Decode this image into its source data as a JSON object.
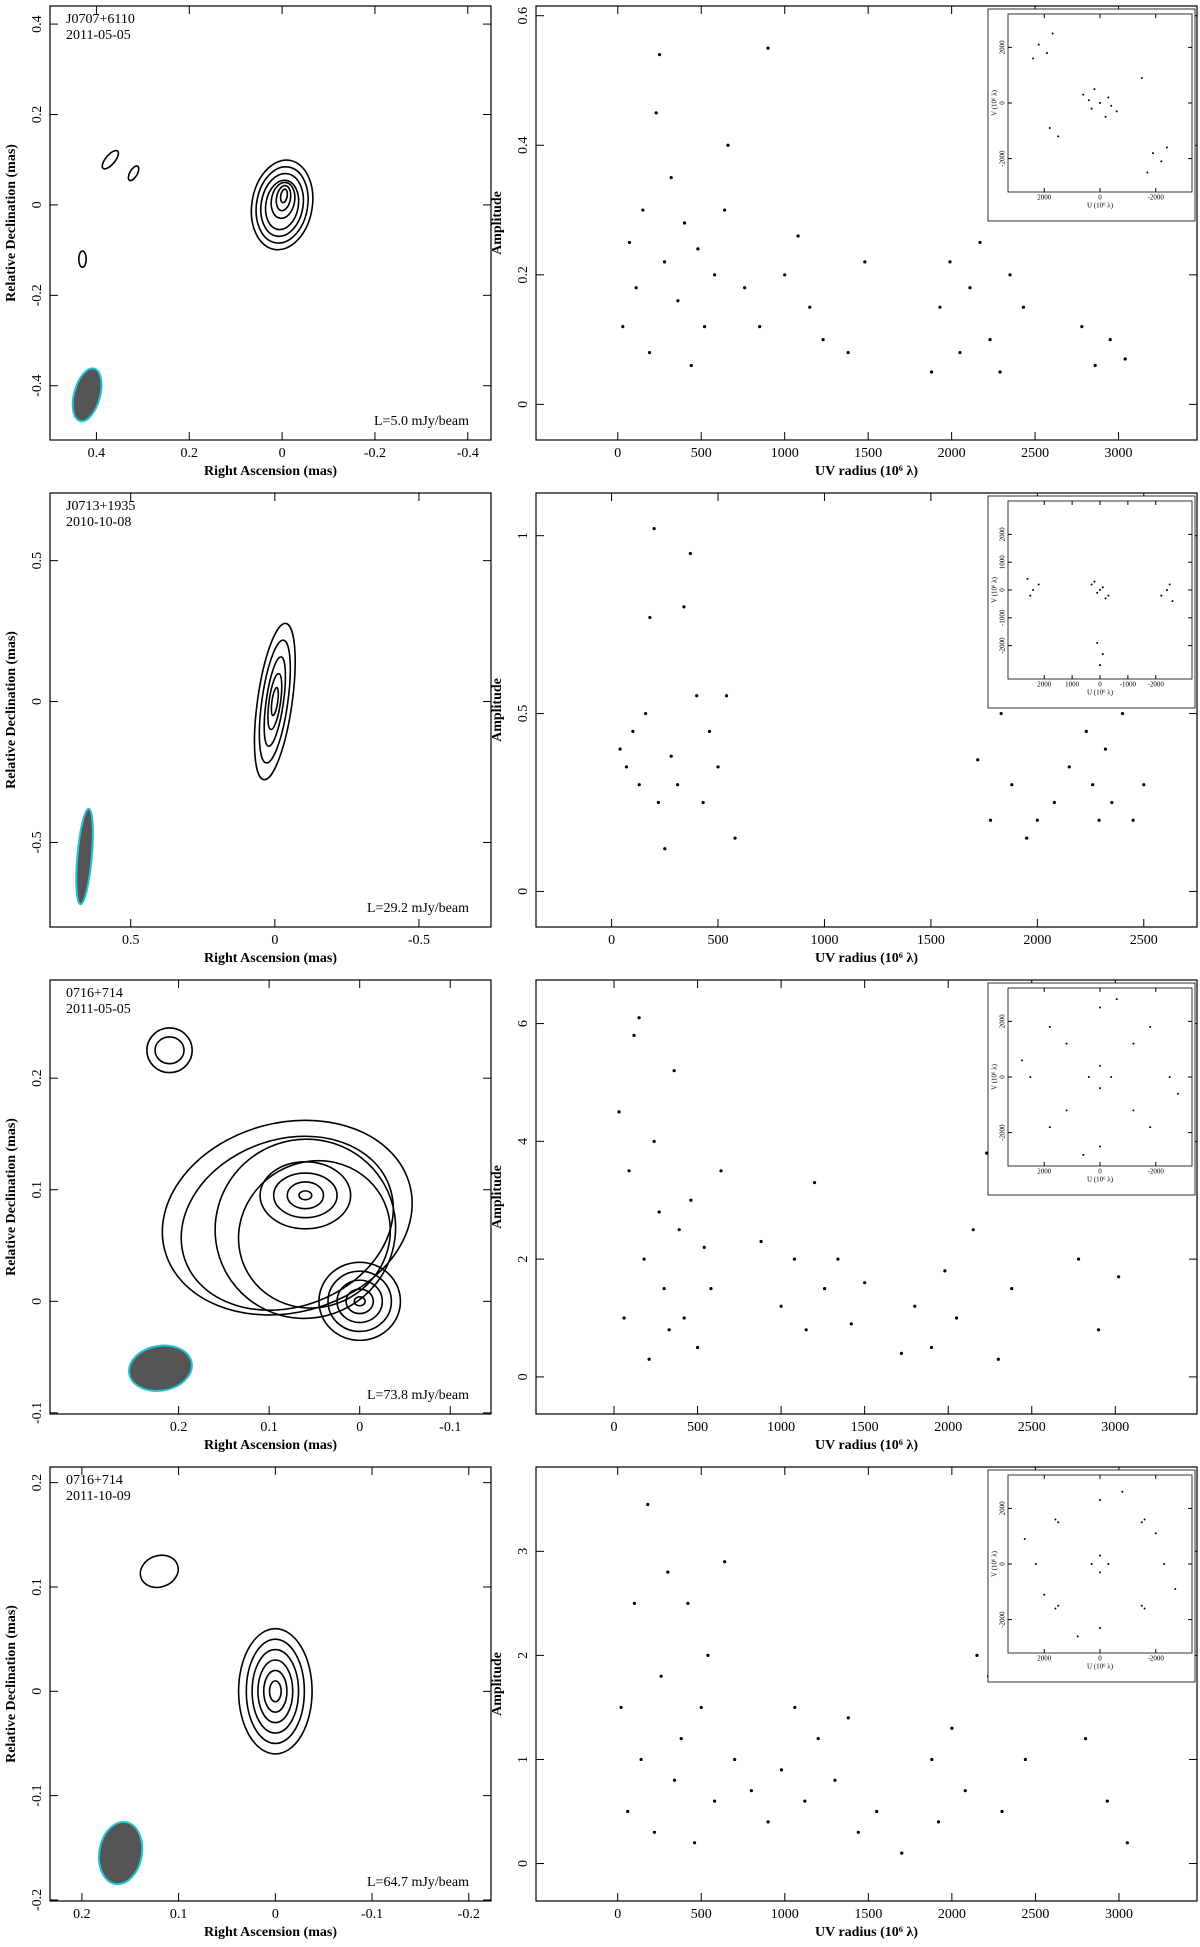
{
  "chart_data": [
    {
      "type": "contour",
      "source": "J0707+6110",
      "date": "2011-05-05",
      "annotation": "L=5.0 mJy/beam",
      "xlabel": "Right Ascension  (mas)",
      "ylabel": "Relative Declination  (mas)",
      "xlim": [
        0.5,
        -0.45
      ],
      "ylim": [
        -0.52,
        0.44
      ],
      "xticks": [
        0.4,
        0.2,
        0,
        -0.2,
        -0.4
      ],
      "yticks": [
        -0.4,
        -0.2,
        0,
        0.2,
        0.4
      ],
      "contour_color": "#000000",
      "beam_color": "#555555",
      "beam_edge": "#22c4d4",
      "contours": [
        {
          "x": 0,
          "y": 0,
          "rx": 0.065,
          "ry": 0.1,
          "angle": 10
        },
        {
          "x": 0,
          "y": 0,
          "rx": 0.055,
          "ry": 0.085,
          "angle": 10
        },
        {
          "x": 0,
          "y": 0,
          "rx": 0.045,
          "ry": 0.07,
          "angle": 10
        },
        {
          "x": 0,
          "y": 0,
          "rx": 0.035,
          "ry": 0.055,
          "angle": 10
        },
        {
          "x": -0.002,
          "y": 0.01,
          "rx": 0.025,
          "ry": 0.04,
          "angle": 10
        },
        {
          "x": -0.003,
          "y": 0.015,
          "rx": 0.015,
          "ry": 0.028,
          "angle": 10
        },
        {
          "x": -0.004,
          "y": 0.02,
          "rx": 0.007,
          "ry": 0.015,
          "angle": 10
        },
        {
          "x": 0.37,
          "y": 0.1,
          "rx": 0.01,
          "ry": 0.025,
          "angle": 40
        },
        {
          "x": 0.32,
          "y": 0.07,
          "rx": 0.008,
          "ry": 0.018,
          "angle": 30
        },
        {
          "x": 0.43,
          "y": -0.12,
          "rx": 0.008,
          "ry": 0.018,
          "angle": 0
        }
      ],
      "beam": {
        "x": 0.42,
        "y": -0.42,
        "rx": 0.028,
        "ry": 0.06,
        "angle": 15
      }
    },
    {
      "type": "scatter",
      "xlabel": "UV radius  (10⁶ λ)",
      "ylabel": "Amplitude",
      "color": "#000000",
      "xlim": [
        -490,
        3470
      ],
      "ylim": [
        -0.055,
        0.615
      ],
      "xticks": [
        0,
        500,
        1000,
        1500,
        2000,
        2500,
        3000
      ],
      "yticks": [
        0,
        0.2,
        0.4,
        0.6
      ],
      "x": [
        30,
        70,
        110,
        150,
        190,
        230,
        250,
        280,
        320,
        360,
        400,
        440,
        480,
        520,
        580,
        640,
        660,
        760,
        850,
        900,
        1000,
        1080,
        1150,
        1230,
        1380,
        1480,
        1880,
        1930,
        1990,
        2050,
        2110,
        2170,
        2230,
        2290,
        2350,
        2430,
        2780,
        2860,
        2950,
        3040
      ],
      "values": [
        0.12,
        0.25,
        0.18,
        0.3,
        0.08,
        0.45,
        0.54,
        0.22,
        0.35,
        0.16,
        0.28,
        0.06,
        0.24,
        0.12,
        0.2,
        0.3,
        0.4,
        0.18,
        0.12,
        0.55,
        0.2,
        0.26,
        0.15,
        0.1,
        0.08,
        0.22,
        0.05,
        0.15,
        0.22,
        0.08,
        0.18,
        0.25,
        0.1,
        0.05,
        0.2,
        0.15,
        0.12,
        0.06,
        0.1,
        0.07
      ],
      "inset": {
        "xlabel": "U (10⁶ λ)",
        "ylabel": "V (10⁶ λ)",
        "xlim": [
          3300,
          -3300
        ],
        "ylim": [
          -3200,
          3200
        ],
        "xticks": [
          2000,
          0,
          -2000
        ],
        "yticks": [
          -2000,
          0,
          2000
        ],
        "x": [
          2200,
          1900,
          1700,
          2400,
          600,
          300,
          -300,
          -600,
          0,
          200,
          -200,
          400,
          -400,
          1800,
          1500,
          -2200,
          -1900,
          -1700,
          -2400,
          -1500
        ],
        "values": [
          2100,
          1800,
          2500,
          1600,
          300,
          -200,
          200,
          -300,
          0,
          500,
          -500,
          100,
          -100,
          -900,
          -1200,
          -2100,
          -1800,
          -2500,
          -1600,
          900
        ]
      }
    },
    {
      "type": "contour",
      "source": "J0713+1935",
      "date": "2010-10-08",
      "annotation": "L=29.2 mJy/beam",
      "xlabel": "Right Ascension  (mas)",
      "ylabel": "Relative Declination  (mas)",
      "xlim": [
        0.78,
        -0.75
      ],
      "ylim": [
        -0.8,
        0.74
      ],
      "xticks": [
        0.5,
        0,
        -0.5
      ],
      "yticks": [
        -0.5,
        0,
        0.5
      ],
      "contour_color": "#000000",
      "beam_color": "#555555",
      "beam_edge": "#22c4d4",
      "contours": [
        {
          "x": 0,
          "y": 0,
          "rx": 0.06,
          "ry": 0.28,
          "angle": 8
        },
        {
          "x": 0,
          "y": 0,
          "rx": 0.045,
          "ry": 0.22,
          "angle": 8
        },
        {
          "x": 0,
          "y": 0,
          "rx": 0.03,
          "ry": 0.16,
          "angle": 8
        },
        {
          "x": 0,
          "y": 0,
          "rx": 0.02,
          "ry": 0.1,
          "angle": 8
        },
        {
          "x": 0,
          "y": 0,
          "rx": 0.01,
          "ry": 0.05,
          "angle": 8
        }
      ],
      "beam": {
        "x": 0.66,
        "y": -0.55,
        "rx": 0.025,
        "ry": 0.17,
        "angle": 5
      }
    },
    {
      "type": "scatter",
      "xlabel": "UV radius  (10⁶ λ)",
      "ylabel": "Amplitude",
      "color": "#000000",
      "xlim": [
        -355,
        2750
      ],
      "ylim": [
        -0.1,
        1.12
      ],
      "xticks": [
        0,
        500,
        1000,
        1500,
        2000,
        2500
      ],
      "yticks": [
        0,
        0.5,
        1
      ],
      "x": [
        40,
        70,
        100,
        130,
        160,
        180,
        200,
        220,
        250,
        280,
        310,
        340,
        370,
        400,
        430,
        460,
        500,
        540,
        580,
        1720,
        1780,
        1830,
        1880,
        1950,
        2000,
        2080,
        2150,
        2200,
        2230,
        2260,
        2290,
        2320,
        2350,
        2400,
        2450,
        2500
      ],
      "values": [
        0.4,
        0.35,
        0.45,
        0.3,
        0.5,
        0.77,
        1.02,
        0.25,
        0.12,
        0.38,
        0.3,
        0.8,
        0.95,
        0.55,
        0.25,
        0.45,
        0.35,
        0.55,
        0.15,
        0.37,
        0.2,
        0.5,
        0.3,
        0.15,
        0.2,
        0.25,
        0.35,
        0.6,
        0.45,
        0.3,
        0.2,
        0.4,
        0.25,
        0.5,
        0.2,
        0.3
      ],
      "inset": {
        "xlabel": "U (10⁶ λ)",
        "ylabel": "V (10⁶ λ)",
        "xlim": [
          3300,
          -3300
        ],
        "ylim": [
          -3200,
          3200
        ],
        "xticks": [
          2000,
          1000,
          0,
          -1000,
          -2000
        ],
        "yticks": [
          -2000,
          -1000,
          0,
          1000,
          2000
        ],
        "x": [
          2600,
          2400,
          2200,
          2500,
          300,
          100,
          -100,
          -300,
          0,
          200,
          -200,
          -2600,
          -2400,
          -2200,
          -2500,
          100,
          -100,
          0
        ],
        "values": [
          400,
          0,
          200,
          -200,
          200,
          -100,
          100,
          -200,
          0,
          300,
          -300,
          -400,
          0,
          -200,
          200,
          -1900,
          -2300,
          -2700
        ]
      }
    },
    {
      "type": "contour",
      "source": "0716+714",
      "date": "2011-05-05",
      "annotation": "L=73.8 mJy/beam",
      "xlabel": "Right Ascension  (mas)",
      "ylabel": "Relative Declination  (mas)",
      "xlim": [
        0.342,
        -0.145
      ],
      "ylim": [
        -0.101,
        0.288
      ],
      "xticks": [
        0.2,
        0.1,
        0,
        -0.1
      ],
      "yticks": [
        -0.1,
        0,
        0.1,
        0.2
      ],
      "contour_color": "#000000",
      "beam_color": "#555555",
      "beam_edge": "#22c4d4",
      "contours": [
        {
          "x": 0,
          "y": 0,
          "rx": 0.045,
          "ry": 0.035,
          "angle": 0
        },
        {
          "x": 0,
          "y": 0,
          "rx": 0.035,
          "ry": 0.027,
          "angle": 0
        },
        {
          "x": 0,
          "y": 0,
          "rx": 0.025,
          "ry": 0.019,
          "angle": 0
        },
        {
          "x": 0,
          "y": 0,
          "rx": 0.015,
          "ry": 0.011,
          "angle": 0
        },
        {
          "x": 0,
          "y": 0,
          "rx": 0.006,
          "ry": 0.004,
          "angle": 0
        },
        {
          "x": 0.06,
          "y": 0.095,
          "rx": 0.05,
          "ry": 0.03,
          "angle": 0
        },
        {
          "x": 0.06,
          "y": 0.095,
          "rx": 0.035,
          "ry": 0.02,
          "angle": 0
        },
        {
          "x": 0.06,
          "y": 0.095,
          "rx": 0.02,
          "ry": 0.012,
          "angle": 0
        },
        {
          "x": 0.06,
          "y": 0.095,
          "rx": 0.007,
          "ry": 0.004,
          "angle": 0
        },
        {
          "x": 0.05,
          "y": 0.06,
          "rx": 0.085,
          "ry": 0.065,
          "angle": -30
        },
        {
          "x": 0.06,
          "y": 0.065,
          "rx": 0.1,
          "ry": 0.08,
          "angle": -30
        },
        {
          "x": 0.08,
          "y": 0.07,
          "rx": 0.12,
          "ry": 0.075,
          "angle": -20
        },
        {
          "x": 0.08,
          "y": 0.075,
          "rx": 0.14,
          "ry": 0.085,
          "angle": -15
        },
        {
          "x": 0.21,
          "y": 0.225,
          "rx": 0.025,
          "ry": 0.02,
          "angle": 0
        },
        {
          "x": 0.21,
          "y": 0.225,
          "rx": 0.016,
          "ry": 0.012,
          "angle": 0
        }
      ],
      "beam": {
        "x": 0.22,
        "y": -0.06,
        "rx": 0.035,
        "ry": 0.02,
        "angle": -10
      }
    },
    {
      "type": "scatter",
      "xlabel": "UV radius  (10⁶ λ)",
      "ylabel": "Amplitude",
      "color": "#000000",
      "xlim": [
        -467,
        3489
      ],
      "ylim": [
        -0.63,
        6.74
      ],
      "xticks": [
        0,
        500,
        1000,
        1500,
        2000,
        2500,
        3000
      ],
      "yticks": [
        0,
        2,
        4,
        6
      ],
      "x": [
        30,
        60,
        90,
        120,
        150,
        180,
        210,
        240,
        270,
        300,
        330,
        360,
        390,
        420,
        460,
        500,
        540,
        580,
        640,
        880,
        1000,
        1080,
        1150,
        1200,
        1260,
        1340,
        1420,
        1500,
        1720,
        1800,
        1900,
        1980,
        2050,
        2150,
        2230,
        2300,
        2380,
        2780,
        2900,
        3020
      ],
      "values": [
        4.5,
        1.0,
        3.5,
        5.8,
        6.1,
        2.0,
        0.3,
        4.0,
        2.8,
        1.5,
        0.8,
        5.2,
        2.5,
        1.0,
        3.0,
        0.5,
        2.2,
        1.5,
        3.5,
        2.3,
        1.2,
        2.0,
        0.8,
        3.3,
        1.5,
        2.0,
        0.9,
        1.6,
        0.4,
        1.2,
        0.5,
        1.8,
        1.0,
        2.5,
        3.8,
        0.3,
        1.5,
        2.0,
        0.8,
        1.7
      ],
      "inset": {
        "xlabel": "U (10⁶ λ)",
        "ylabel": "V (10⁶ λ)",
        "xlim": [
          3300,
          -3300
        ],
        "ylim": [
          -3200,
          3200
        ],
        "xticks": [
          2000,
          0,
          -2000
        ],
        "yticks": [
          -2000,
          0,
          2000
        ],
        "x": [
          2500,
          1800,
          0,
          -1800,
          -2500,
          -1800,
          0,
          1800,
          1200,
          -1200,
          -1200,
          1200,
          400,
          -400,
          0,
          0,
          2800,
          -2800,
          600,
          -600
        ],
        "values": [
          0,
          1800,
          2500,
          1800,
          0,
          -1800,
          -2500,
          -1800,
          1200,
          1200,
          -1200,
          -1200,
          0,
          0,
          400,
          -400,
          600,
          -600,
          -2800,
          2800
        ]
      }
    },
    {
      "type": "contour",
      "source": "0716+714",
      "date": "2011-10-09",
      "annotation": "L=64.7 mJy/beam",
      "xlabel": "Right Ascension  (mas)",
      "ylabel": "Relative Declination  (mas)",
      "xlim": [
        0.233,
        -0.223
      ],
      "ylim": [
        -0.201,
        0.215
      ],
      "xticks": [
        0.2,
        0.1,
        0,
        -0.1,
        -0.2
      ],
      "yticks": [
        -0.2,
        -0.1,
        0,
        0.1,
        0.2
      ],
      "contour_color": "#000000",
      "beam_color": "#555555",
      "beam_edge": "#22c4d4",
      "contours": [
        {
          "x": 0,
          "y": 0,
          "rx": 0.038,
          "ry": 0.06,
          "angle": 0
        },
        {
          "x": 0,
          "y": 0,
          "rx": 0.03,
          "ry": 0.05,
          "angle": 0
        },
        {
          "x": 0,
          "y": 0,
          "rx": 0.024,
          "ry": 0.04,
          "angle": 0
        },
        {
          "x": 0,
          "y": 0,
          "rx": 0.018,
          "ry": 0.03,
          "angle": 0
        },
        {
          "x": 0,
          "y": 0,
          "rx": 0.012,
          "ry": 0.02,
          "angle": 0
        },
        {
          "x": 0,
          "y": 0,
          "rx": 0.006,
          "ry": 0.01,
          "angle": 0
        },
        {
          "x": 0.12,
          "y": 0.115,
          "rx": 0.02,
          "ry": 0.015,
          "angle": -20
        }
      ],
      "beam": {
        "x": 0.16,
        "y": -0.155,
        "rx": 0.022,
        "ry": 0.03,
        "angle": 10
      }
    },
    {
      "type": "scatter",
      "xlabel": "UV radius  (10⁶ λ)",
      "ylabel": "Amplitude",
      "color": "#000000",
      "xlim": [
        -489,
        3467
      ],
      "ylim": [
        -0.36,
        3.81
      ],
      "xticks": [
        0,
        500,
        1000,
        1500,
        2000,
        2500,
        3000
      ],
      "yticks": [
        0,
        1,
        2,
        3
      ],
      "x": [
        20,
        60,
        100,
        140,
        180,
        220,
        260,
        300,
        340,
        380,
        420,
        460,
        500,
        540,
        580,
        640,
        700,
        800,
        900,
        980,
        1060,
        1120,
        1200,
        1300,
        1380,
        1440,
        1550,
        1700,
        1880,
        1920,
        2000,
        2080,
        2150,
        2220,
        2300,
        2380,
        2440,
        2800,
        2930,
        3050
      ],
      "values": [
        1.5,
        0.5,
        2.5,
        1.0,
        3.45,
        0.3,
        1.8,
        2.8,
        0.8,
        1.2,
        2.5,
        0.2,
        1.5,
        2.0,
        0.6,
        2.9,
        1.0,
        0.7,
        0.4,
        0.9,
        1.5,
        0.6,
        1.2,
        0.8,
        1.4,
        0.3,
        0.5,
        0.1,
        1.0,
        0.4,
        1.3,
        0.7,
        2.0,
        1.8,
        0.5,
        2.6,
        1.0,
        1.2,
        0.6,
        0.2
      ],
      "inset": {
        "xlabel": "U (10⁶ λ)",
        "ylabel": "V (10⁶ λ)",
        "xlim": [
          3300,
          -3300
        ],
        "ylim": [
          -3200,
          3200
        ],
        "xticks": [
          2000,
          0,
          -2000
        ],
        "yticks": [
          -2000,
          0,
          2000
        ],
        "x": [
          2300,
          1600,
          0,
          -1600,
          -2300,
          -1600,
          0,
          1600,
          1500,
          -1500,
          -1500,
          1500,
          300,
          -300,
          0,
          0,
          2700,
          -2700,
          800,
          -800,
          2000,
          -2000
        ],
        "values": [
          0,
          1600,
          2300,
          1600,
          0,
          -1600,
          -2300,
          -1600,
          1500,
          1500,
          -1500,
          -1500,
          0,
          0,
          300,
          -300,
          900,
          -900,
          -2600,
          2600,
          -1100,
          1100
        ]
      }
    }
  ]
}
